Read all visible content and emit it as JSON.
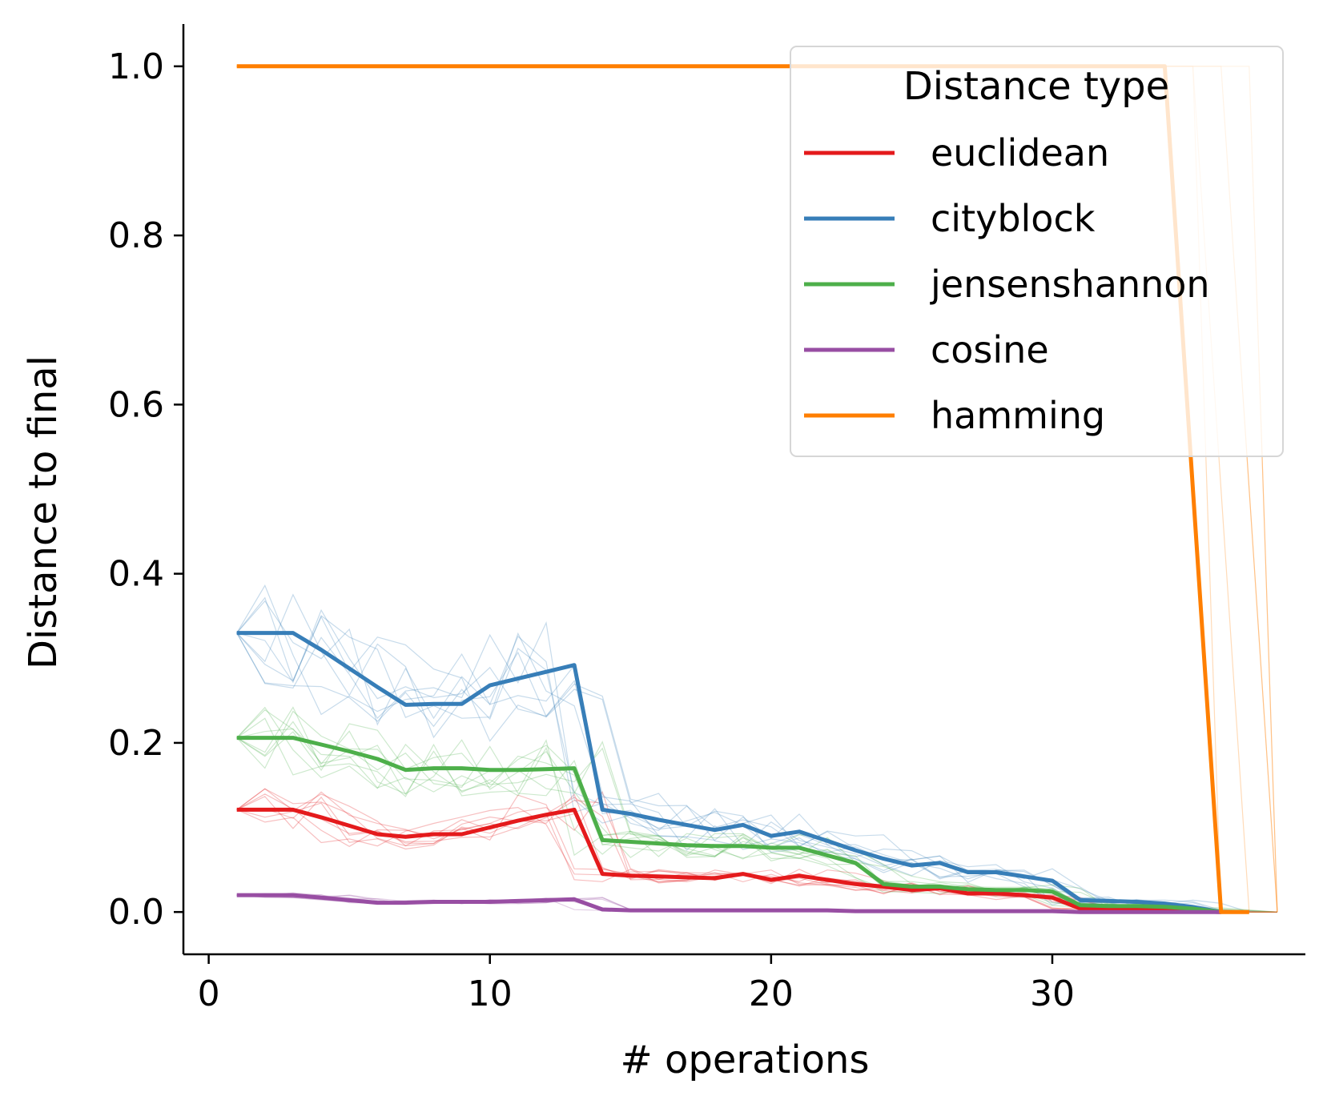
{
  "chart_data": {
    "type": "line",
    "title": "",
    "xlabel": "# operations",
    "ylabel": "Distance to final",
    "xlim": [
      -0.9,
      39
    ],
    "ylim": [
      -0.05,
      1.05
    ],
    "xticks": [
      0,
      10,
      20,
      30
    ],
    "xtick_labels": [
      "0",
      "10",
      "20",
      "30"
    ],
    "yticks": [
      0.0,
      0.2,
      0.4,
      0.6,
      0.8,
      1.0
    ],
    "ytick_labels": [
      "0.0",
      "0.2",
      "0.4",
      "0.6",
      "0.8",
      "1.0"
    ],
    "grid": false,
    "legend": {
      "title": "Distance type",
      "placement": "top-right"
    },
    "series": [
      {
        "name": "euclidean",
        "color": "#e41a1c",
        "x": [
          1,
          2,
          3,
          4,
          5,
          6,
          7,
          8,
          9,
          10,
          11,
          12,
          13,
          14,
          15,
          16,
          17,
          18,
          19,
          20,
          21,
          22,
          23,
          24,
          25,
          26,
          27,
          28,
          29,
          30,
          31,
          32,
          33,
          34,
          35,
          36
        ],
        "values": [
          0.121,
          0.121,
          0.121,
          0.112,
          0.102,
          0.092,
          0.089,
          0.092,
          0.092,
          0.1,
          0.108,
          0.115,
          0.121,
          0.045,
          0.043,
          0.042,
          0.041,
          0.04,
          0.045,
          0.038,
          0.043,
          0.038,
          0.033,
          0.03,
          0.026,
          0.028,
          0.022,
          0.022,
          0.02,
          0.017,
          0.004,
          0.003,
          0.003,
          0.002,
          0.001,
          0.0
        ]
      },
      {
        "name": "cityblock",
        "color": "#377eb8",
        "x": [
          1,
          2,
          3,
          4,
          5,
          6,
          7,
          8,
          9,
          10,
          11,
          12,
          13,
          14,
          15,
          16,
          17,
          18,
          19,
          20,
          21,
          22,
          23,
          24,
          25,
          26,
          27,
          28,
          29,
          30,
          31,
          32,
          33,
          34,
          35,
          36
        ],
        "values": [
          0.33,
          0.33,
          0.33,
          0.31,
          0.288,
          0.266,
          0.245,
          0.246,
          0.246,
          0.268,
          0.276,
          0.284,
          0.292,
          0.121,
          0.116,
          0.109,
          0.103,
          0.097,
          0.103,
          0.09,
          0.095,
          0.084,
          0.073,
          0.063,
          0.055,
          0.058,
          0.047,
          0.047,
          0.042,
          0.037,
          0.014,
          0.013,
          0.012,
          0.01,
          0.006,
          0.0
        ]
      },
      {
        "name": "jensenshannon",
        "color": "#4daf4a",
        "x": [
          1,
          2,
          3,
          4,
          5,
          6,
          7,
          8,
          9,
          10,
          11,
          12,
          13,
          14,
          15,
          16,
          17,
          18,
          19,
          20,
          21,
          22,
          23,
          24,
          25,
          26,
          27,
          28,
          29,
          30,
          31,
          32,
          33,
          34,
          35,
          36
        ],
        "values": [
          0.206,
          0.206,
          0.206,
          0.198,
          0.19,
          0.181,
          0.168,
          0.17,
          0.17,
          0.168,
          0.168,
          0.169,
          0.17,
          0.085,
          0.083,
          0.081,
          0.079,
          0.078,
          0.078,
          0.076,
          0.076,
          0.067,
          0.058,
          0.033,
          0.03,
          0.03,
          0.027,
          0.026,
          0.026,
          0.024,
          0.008,
          0.007,
          0.007,
          0.006,
          0.004,
          0.0
        ]
      },
      {
        "name": "cosine",
        "color": "#984ea3",
        "x": [
          1,
          2,
          3,
          4,
          5,
          6,
          7,
          8,
          9,
          10,
          11,
          12,
          13,
          14,
          15,
          16,
          17,
          18,
          19,
          20,
          21,
          22,
          23,
          24,
          25,
          26,
          27,
          28,
          29,
          30,
          31,
          32,
          33,
          34,
          35,
          36
        ],
        "values": [
          0.02,
          0.02,
          0.02,
          0.017,
          0.014,
          0.011,
          0.011,
          0.012,
          0.012,
          0.012,
          0.013,
          0.014,
          0.015,
          0.003,
          0.002,
          0.002,
          0.002,
          0.002,
          0.002,
          0.002,
          0.002,
          0.002,
          0.001,
          0.001,
          0.001,
          0.001,
          0.001,
          0.001,
          0.001,
          0.001,
          0.0,
          0.0,
          0.0,
          0.0,
          0.0,
          0.0
        ]
      },
      {
        "name": "hamming",
        "color": "#ff7f00",
        "x": [
          1,
          34,
          36,
          37
        ],
        "values": [
          1.0,
          1.0,
          0.0,
          0.0
        ]
      }
    ]
  }
}
